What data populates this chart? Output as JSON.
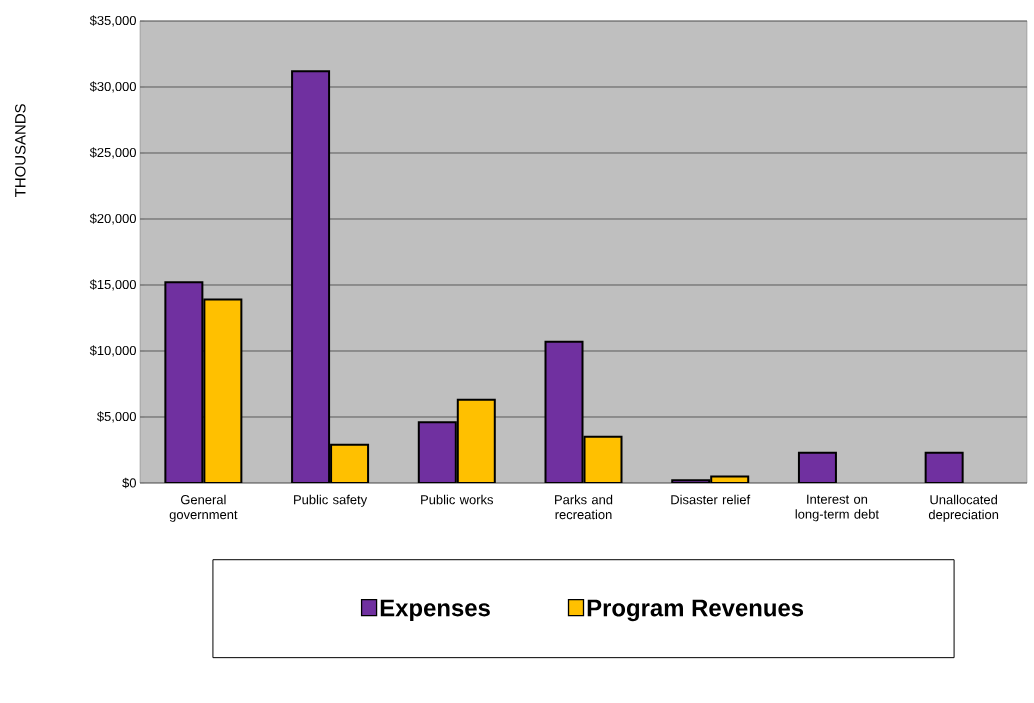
{
  "chart_data": {
    "type": "bar",
    "ylabel": "THOUSANDS",
    "categories": [
      "General government",
      "Public safety",
      "Public works",
      "Parks and recreation",
      "Disaster relief",
      "Interest on long-term debt",
      "Unallocated depreciation"
    ],
    "series": [
      {
        "name": "Expenses",
        "color": "#7030a0",
        "values": [
          15200,
          31200,
          4600,
          10700,
          200,
          2300,
          2300
        ]
      },
      {
        "name": "Program Revenues",
        "color": "#ffc000",
        "values": [
          13900,
          2900,
          6300,
          3500,
          500,
          null,
          null
        ]
      }
    ],
    "ylim": [
      0,
      35000
    ],
    "yticks": [
      {
        "value": 0,
        "label": "$0"
      },
      {
        "value": 5000,
        "label": "$5,000"
      },
      {
        "value": 10000,
        "label": "$10,000"
      },
      {
        "value": 15000,
        "label": "$15,000"
      },
      {
        "value": 20000,
        "label": "$20,000"
      },
      {
        "value": 25000,
        "label": "$25,000"
      },
      {
        "value": 30000,
        "label": "$30,000"
      },
      {
        "value": 35000,
        "label": "$35,000"
      }
    ],
    "grid": "y",
    "legend": "bottom"
  }
}
